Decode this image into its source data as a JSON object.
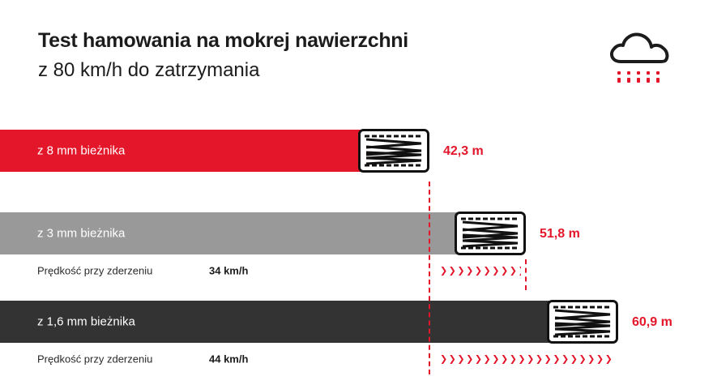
{
  "header": {
    "title": "Test hamowania na mokrej nawierzchni",
    "subtitle": "z 80 km/h do zatrzymania"
  },
  "icons": {
    "weather": "rain-cloud-icon",
    "tire": "tire-tread-icon",
    "arrow": "chevron-right-icon"
  },
  "colors": {
    "accent": "#e3162a",
    "bar_8mm": "#e3162a",
    "bar_3mm": "#999999",
    "bar_16mm": "#333333",
    "text_dark": "#1c1c1c"
  },
  "chart_data": {
    "type": "bar",
    "orientation": "horizontal",
    "title": "Test hamowania na mokrej nawierzchni",
    "subtitle": "z 80 km/h do zatrzymania",
    "xlim": [
      0,
      60.9
    ],
    "categories": [
      "z 8 mm bieżnika",
      "z 3 mm bieżnika",
      "z 1,6 mm bieżnika"
    ],
    "values": [
      42.3,
      51.8,
      60.9
    ],
    "value_labels": [
      "42,3 m",
      "51,8 m",
      "60,9 m"
    ],
    "impact_speed": {
      "label": "Prędkość przy zderzeniu",
      "values": [
        null,
        34,
        44
      ],
      "value_labels": [
        "",
        "34 km/h",
        "44 km/h"
      ]
    }
  }
}
